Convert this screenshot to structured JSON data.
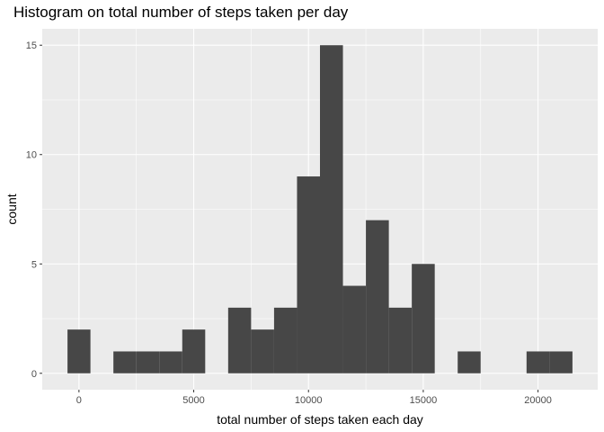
{
  "chart_data": {
    "type": "bar",
    "title": "Histogram on total number of steps taken per day",
    "xlabel": "total number of steps taken each day",
    "ylabel": "count",
    "bin_width": 1000,
    "bins": [
      {
        "x": 0,
        "count": 2
      },
      {
        "x": 1000,
        "count": 0
      },
      {
        "x": 2000,
        "count": 1
      },
      {
        "x": 3000,
        "count": 1
      },
      {
        "x": 4000,
        "count": 1
      },
      {
        "x": 5000,
        "count": 2
      },
      {
        "x": 6000,
        "count": 0
      },
      {
        "x": 7000,
        "count": 3
      },
      {
        "x": 8000,
        "count": 2
      },
      {
        "x": 9000,
        "count": 3
      },
      {
        "x": 10000,
        "count": 9
      },
      {
        "x": 11000,
        "count": 15
      },
      {
        "x": 12000,
        "count": 4
      },
      {
        "x": 13000,
        "count": 7
      },
      {
        "x": 14000,
        "count": 3
      },
      {
        "x": 15000,
        "count": 5
      },
      {
        "x": 16000,
        "count": 0
      },
      {
        "x": 17000,
        "count": 1
      },
      {
        "x": 18000,
        "count": 0
      },
      {
        "x": 19000,
        "count": 0
      },
      {
        "x": 20000,
        "count": 1
      },
      {
        "x": 21000,
        "count": 1
      }
    ],
    "xlim": [
      -1600,
      22600
    ],
    "ylim": [
      -0.75,
      15.75
    ],
    "x_ticks": [
      0,
      5000,
      10000,
      15000,
      20000
    ],
    "y_ticks": [
      0,
      5,
      10,
      15
    ],
    "grid": true,
    "legend": "none",
    "colors": {
      "bar_fill": "#474747",
      "panel_bg": "#ebebeb",
      "grid_major": "#ffffff",
      "tick_text": "#4d4d4d"
    }
  }
}
